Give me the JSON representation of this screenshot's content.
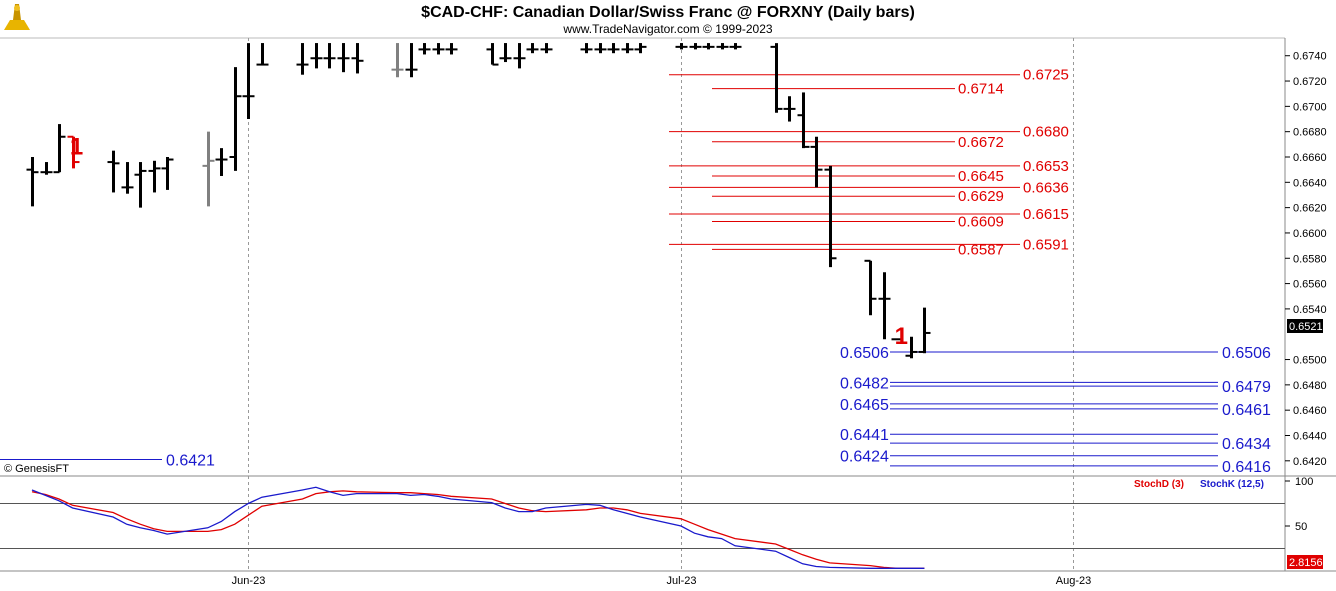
{
  "chart_data": {
    "type": "ohlc",
    "title": "$CAD-CHF:  Canadian Dollar/Swiss Franc @ FORXNY  (Daily bars)",
    "subtitle": "www.TradeNavigator.com © 1999-2023",
    "copyright": "© GenesisFT",
    "price_axis": {
      "ticks": [
        "0.6740",
        "0.6720",
        "0.6700",
        "0.6680",
        "0.6660",
        "0.6640",
        "0.6620",
        "0.6600",
        "0.6580",
        "0.6560",
        "0.6540",
        "0.6500",
        "0.6480",
        "0.6460",
        "0.6440",
        "0.6420"
      ],
      "ylim": [
        0.641,
        0.675
      ],
      "last_price": "0.6521"
    },
    "date_axis": {
      "labels": [
        {
          "text": "Jun-23",
          "date": "2023-06-01"
        },
        {
          "text": "Jul-23",
          "date": "2023-07-03"
        },
        {
          "text": "Aug-23",
          "date": "2023-08-01"
        }
      ]
    },
    "bars": [
      {
        "date": "2023-05-16",
        "o": 0.665,
        "h": 0.666,
        "l": 0.6621,
        "c": 0.6648,
        "color": "#000000"
      },
      {
        "date": "2023-05-17",
        "o": 0.6648,
        "h": 0.6656,
        "l": 0.6646,
        "c": 0.6648,
        "color": "#000000"
      },
      {
        "date": "2023-05-18",
        "o": 0.6648,
        "h": 0.6686,
        "l": 0.6648,
        "c": 0.6676,
        "color": "#000000"
      },
      {
        "date": "2023-05-19",
        "o": 0.6676,
        "h": 0.6676,
        "l": 0.6651,
        "c": 0.6656,
        "color": "#e00000"
      },
      {
        "date": "2023-05-22",
        "o": 0.6656,
        "h": 0.6665,
        "l": 0.6632,
        "c": 0.6655,
        "color": "#000000"
      },
      {
        "date": "2023-05-23",
        "o": 0.6636,
        "h": 0.6656,
        "l": 0.6631,
        "c": 0.6636,
        "color": "#000000"
      },
      {
        "date": "2023-05-24",
        "o": 0.6646,
        "h": 0.6656,
        "l": 0.662,
        "c": 0.6649,
        "color": "#000000"
      },
      {
        "date": "2023-05-25",
        "o": 0.6649,
        "h": 0.6657,
        "l": 0.6632,
        "c": 0.6651,
        "color": "#000000"
      },
      {
        "date": "2023-05-26",
        "o": 0.6651,
        "h": 0.666,
        "l": 0.6634,
        "c": 0.6658,
        "color": "#000000"
      },
      {
        "date": "2023-05-29",
        "o": 0.6653,
        "h": 0.668,
        "l": 0.6621,
        "c": 0.6657,
        "color": "#808080"
      },
      {
        "date": "2023-05-30",
        "o": 0.6658,
        "h": 0.6667,
        "l": 0.6645,
        "c": 0.6658,
        "color": "#000000"
      },
      {
        "date": "2023-05-31",
        "o": 0.666,
        "h": 0.6731,
        "l": 0.6649,
        "c": 0.6708,
        "color": "#000000"
      },
      {
        "date": "2023-06-01",
        "o": 0.6708,
        "h": 0.675,
        "l": 0.669,
        "c": 0.6708,
        "color": "#000000"
      },
      {
        "date": "2023-06-02",
        "o": 0.6733,
        "h": 0.675,
        "l": 0.6733,
        "c": 0.6733,
        "color": "#000000"
      },
      {
        "date": "2023-06-05",
        "o": 0.6733,
        "h": 0.675,
        "l": 0.6725,
        "c": 0.6733,
        "color": "#000000"
      },
      {
        "date": "2023-06-06",
        "o": 0.6738,
        "h": 0.675,
        "l": 0.673,
        "c": 0.6738,
        "color": "#000000"
      },
      {
        "date": "2023-06-07",
        "o": 0.6738,
        "h": 0.675,
        "l": 0.673,
        "c": 0.6738,
        "color": "#000000"
      },
      {
        "date": "2023-06-08",
        "o": 0.6738,
        "h": 0.675,
        "l": 0.6727,
        "c": 0.6738,
        "color": "#000000"
      },
      {
        "date": "2023-06-09",
        "o": 0.6738,
        "h": 0.675,
        "l": 0.6726,
        "c": 0.6736,
        "color": "#000000"
      },
      {
        "date": "2023-06-12",
        "o": 0.6729,
        "h": 0.675,
        "l": 0.6723,
        "c": 0.6729,
        "color": "#808080"
      },
      {
        "date": "2023-06-13",
        "o": 0.6729,
        "h": 0.675,
        "l": 0.6723,
        "c": 0.6729,
        "color": "#000000"
      },
      {
        "date": "2023-06-14",
        "o": 0.6745,
        "h": 0.675,
        "l": 0.6741,
        "c": 0.6745,
        "color": "#000000"
      },
      {
        "date": "2023-06-15",
        "o": 0.6745,
        "h": 0.675,
        "l": 0.6741,
        "c": 0.6745,
        "color": "#000000"
      },
      {
        "date": "2023-06-16",
        "o": 0.6745,
        "h": 0.675,
        "l": 0.6741,
        "c": 0.6745,
        "color": "#000000"
      },
      {
        "date": "2023-06-19",
        "o": 0.6745,
        "h": 0.675,
        "l": 0.6733,
        "c": 0.6733,
        "color": "#000000"
      },
      {
        "date": "2023-06-20",
        "o": 0.6738,
        "h": 0.675,
        "l": 0.6735,
        "c": 0.6738,
        "color": "#000000"
      },
      {
        "date": "2023-06-21",
        "o": 0.6738,
        "h": 0.675,
        "l": 0.673,
        "c": 0.6738,
        "color": "#000000"
      },
      {
        "date": "2023-06-22",
        "o": 0.6745,
        "h": 0.675,
        "l": 0.6742,
        "c": 0.6745,
        "color": "#000000"
      },
      {
        "date": "2023-06-23",
        "o": 0.6745,
        "h": 0.675,
        "l": 0.6742,
        "c": 0.6745,
        "color": "#000000"
      },
      {
        "date": "2023-06-26",
        "o": 0.6745,
        "h": 0.675,
        "l": 0.6742,
        "c": 0.6745,
        "color": "#000000"
      },
      {
        "date": "2023-06-27",
        "o": 0.6745,
        "h": 0.675,
        "l": 0.6742,
        "c": 0.6745,
        "color": "#000000"
      },
      {
        "date": "2023-06-28",
        "o": 0.6745,
        "h": 0.675,
        "l": 0.6742,
        "c": 0.6745,
        "color": "#000000"
      },
      {
        "date": "2023-06-29",
        "o": 0.6745,
        "h": 0.675,
        "l": 0.6742,
        "c": 0.6745,
        "color": "#000000"
      },
      {
        "date": "2023-06-30",
        "o": 0.6745,
        "h": 0.675,
        "l": 0.6742,
        "c": 0.6747,
        "color": "#000000"
      },
      {
        "date": "2023-07-03",
        "o": 0.6747,
        "h": 0.675,
        "l": 0.6745,
        "c": 0.6747,
        "color": "#000000"
      },
      {
        "date": "2023-07-04",
        "o": 0.6747,
        "h": 0.675,
        "l": 0.6745,
        "c": 0.6747,
        "color": "#000000"
      },
      {
        "date": "2023-07-05",
        "o": 0.6747,
        "h": 0.675,
        "l": 0.6745,
        "c": 0.6747,
        "color": "#000000"
      },
      {
        "date": "2023-07-06",
        "o": 0.6747,
        "h": 0.675,
        "l": 0.6745,
        "c": 0.6747,
        "color": "#000000"
      },
      {
        "date": "2023-07-07",
        "o": 0.6747,
        "h": 0.675,
        "l": 0.6745,
        "c": 0.6747,
        "color": "#000000"
      },
      {
        "date": "2023-07-10",
        "o": 0.6747,
        "h": 0.675,
        "l": 0.6695,
        "c": 0.6698,
        "color": "#000000"
      },
      {
        "date": "2023-07-11",
        "o": 0.6698,
        "h": 0.6708,
        "l": 0.6688,
        "c": 0.6698,
        "color": "#000000"
      },
      {
        "date": "2023-07-12",
        "o": 0.6693,
        "h": 0.6711,
        "l": 0.6667,
        "c": 0.6668,
        "color": "#000000"
      },
      {
        "date": "2023-07-13",
        "o": 0.6668,
        "h": 0.6676,
        "l": 0.6636,
        "c": 0.665,
        "color": "#000000"
      },
      {
        "date": "2023-07-14",
        "o": 0.665,
        "h": 0.6653,
        "l": 0.6573,
        "c": 0.658,
        "color": "#000000"
      },
      {
        "date": "2023-07-17",
        "o": 0.6578,
        "h": 0.6578,
        "l": 0.6535,
        "c": 0.6548,
        "color": "#000000"
      },
      {
        "date": "2023-07-18",
        "o": 0.6548,
        "h": 0.6569,
        "l": 0.6516,
        "c": 0.6548,
        "color": "#000000"
      },
      {
        "date": "2023-07-19",
        "o": 0.6516,
        "h": 0.6516,
        "l": 0.6516,
        "c": 0.6516,
        "color": "#000000"
      },
      {
        "date": "2023-07-20",
        "o": 0.6503,
        "h": 0.6518,
        "l": 0.6501,
        "c": 0.6506,
        "color": "#000000"
      },
      {
        "date": "2023-07-21",
        "o": 0.6506,
        "h": 0.6541,
        "l": 0.6505,
        "c": 0.6521,
        "color": "#000000"
      }
    ],
    "pivot_markers": [
      {
        "date": "2023-05-19",
        "price": 0.667,
        "text": "1"
      },
      {
        "date": "2023-07-19",
        "price": 0.652,
        "text": "1"
      }
    ],
    "resistance_levels": [
      {
        "value": 0.6725,
        "label": "0.6725"
      },
      {
        "value": 0.6714,
        "label": "0.6714"
      },
      {
        "value": 0.668,
        "label": "0.6680"
      },
      {
        "value": 0.6672,
        "label": "0.6672"
      },
      {
        "value": 0.6653,
        "label": "0.6653"
      },
      {
        "value": 0.6645,
        "label": "0.6645"
      },
      {
        "value": 0.6636,
        "label": "0.6636"
      },
      {
        "value": 0.6629,
        "label": "0.6629"
      },
      {
        "value": 0.6615,
        "label": "0.6615"
      },
      {
        "value": 0.6609,
        "label": "0.6609"
      },
      {
        "value": 0.6591,
        "label": "0.6591"
      },
      {
        "value": 0.6587,
        "label": "0.6587"
      }
    ],
    "support_levels": [
      {
        "value": 0.6506,
        "label": "0.6506",
        "side": "both"
      },
      {
        "value": 0.6482,
        "label": "0.6482",
        "side": "left"
      },
      {
        "value": 0.6479,
        "label": "0.6479",
        "side": "right"
      },
      {
        "value": 0.6465,
        "label": "0.6465",
        "side": "left"
      },
      {
        "value": 0.6461,
        "label": "0.6461",
        "side": "right"
      },
      {
        "value": 0.6441,
        "label": "0.6441",
        "side": "left"
      },
      {
        "value": 0.6434,
        "label": "0.6434",
        "side": "right"
      },
      {
        "value": 0.6424,
        "label": "0.6424",
        "side": "left"
      },
      {
        "value": 0.6416,
        "label": "0.6416",
        "side": "right"
      },
      {
        "value": 0.6421,
        "label": "0.6421",
        "side": "old"
      }
    ],
    "stochastic": {
      "ylim": [
        0,
        100
      ],
      "ticks": [
        "100",
        "50"
      ],
      "lines": [
        25,
        75
      ],
      "last_value": "2.8156",
      "series": [
        {
          "name": "StochD (3)",
          "color": "#e00000",
          "values": [
            88,
            85,
            80,
            73,
            65,
            58,
            52,
            47,
            44,
            44,
            46,
            52,
            62,
            72,
            80,
            86,
            88,
            89,
            88,
            87,
            87,
            86,
            85,
            83,
            80,
            75,
            70,
            67,
            66,
            68,
            70,
            70,
            68,
            64,
            58,
            52,
            46,
            41,
            36,
            30,
            24,
            18,
            13,
            9,
            6,
            4,
            3,
            3,
            3
          ]
        },
        {
          "name": "StochK (12,5)",
          "color": "#1a1acc",
          "values": [
            90,
            84,
            78,
            70,
            60,
            52,
            48,
            45,
            41,
            48,
            55,
            66,
            75,
            82,
            90,
            93,
            88,
            84,
            86,
            86,
            84,
            85,
            83,
            80,
            76,
            70,
            66,
            66,
            70,
            74,
            73,
            68,
            64,
            60,
            50,
            42,
            38,
            36,
            28,
            22,
            15,
            8,
            5,
            4,
            3,
            3,
            3,
            3,
            3
          ]
        }
      ]
    }
  }
}
